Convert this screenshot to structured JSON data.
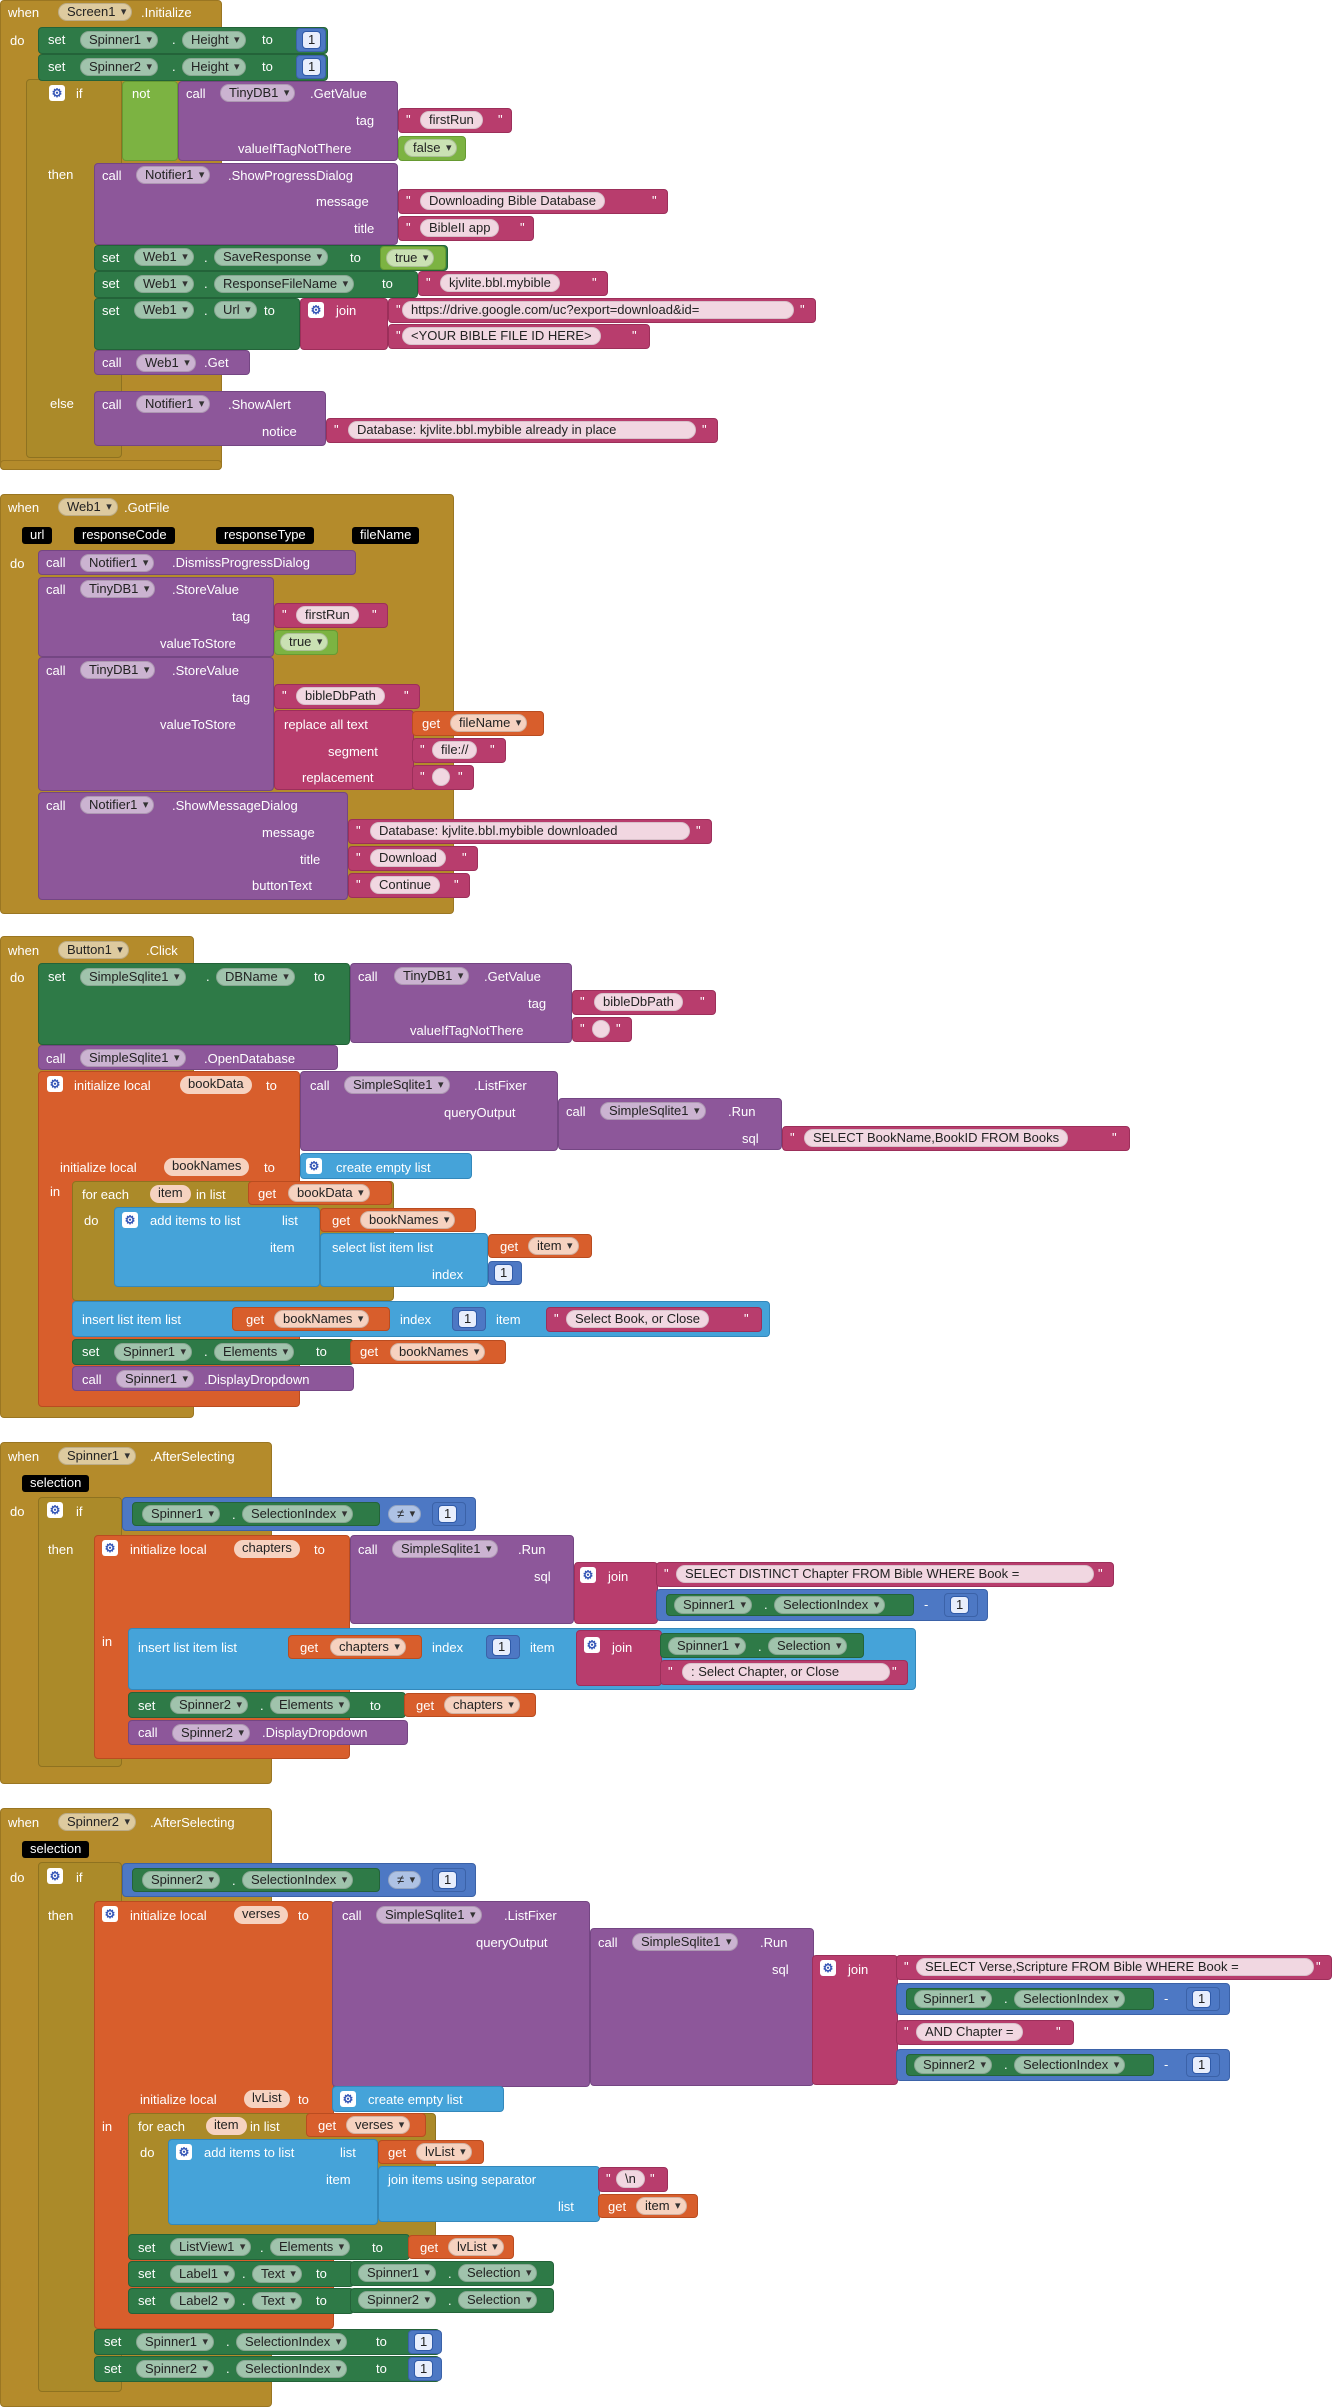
{
  "kw": {
    "when": "when",
    "do": "do",
    "set": "set",
    "to": "to",
    "call": "call",
    "if": "if",
    "then": "then",
    "else": "else",
    "not": "not",
    "join": "join",
    "get": "get",
    "in": "in",
    "dot": ".",
    "neq": "≠",
    "minus": "-",
    "q": "\""
  },
  "components": {
    "screen1": "Screen1",
    "spinner1": "Spinner1",
    "spinner2": "Spinner2",
    "tinydb1": "TinyDB1",
    "notifier1": "Notifier1",
    "web1": "Web1",
    "button1": "Button1",
    "simplesqlite1": "SimpleSqlite1",
    "listview1": "ListView1",
    "label1": "Label1",
    "label2": "Label2"
  },
  "props": {
    "height": "Height",
    "saveResponse": "SaveResponse",
    "responseFileName": "ResponseFileName",
    "url": "Url",
    "dbName": "DBName",
    "elements": "Elements",
    "selectionIndex": "SelectionIndex",
    "selection": "Selection",
    "text": "Text"
  },
  "events": {
    "initialize": ".Initialize",
    "gotFile": ".GotFile",
    "click": ".Click",
    "afterSelecting": ".AfterSelecting"
  },
  "methods": {
    "getValue": ".GetValue",
    "showProgressDialog": ".ShowProgressDialog",
    "get": ".Get",
    "showAlert": ".ShowAlert",
    "dismissProgressDialog": ".DismissProgressDialog",
    "storeValue": ".StoreValue",
    "showMessageDialog": ".ShowMessageDialog",
    "openDatabase": ".OpenDatabase",
    "listFixer": ".ListFixer",
    "run": ".Run",
    "displayDropdown": ".DisplayDropdown"
  },
  "sockets": {
    "tag": "tag",
    "valueIfTagNotThere": "valueIfTagNotThere",
    "message": "message",
    "title": "title",
    "notice": "notice",
    "valueToStore": "valueToStore",
    "segment": "segment",
    "replacement": "replacement",
    "buttonText": "buttonText",
    "queryOutput": "queryOutput",
    "sql": "sql",
    "list": "list",
    "item": "item",
    "index": "index"
  },
  "ops": {
    "replaceAllText": "replace all text",
    "initializeLocal": "initialize local",
    "createEmptyList": "create empty list",
    "forEach": "for each",
    "inList": "in list",
    "addItemsToList": "add items to list",
    "selectListItem": "select list item  list",
    "insertListItem": "insert list item  list",
    "joinItemsUsingSeparator": "join items using separator"
  },
  "bools": {
    "false": "false",
    "true": "true"
  },
  "numbers": {
    "one": "1"
  },
  "params": {
    "url": "url",
    "responseCode": "responseCode",
    "responseType": "responseType",
    "fileName": "fileName",
    "selection": "selection"
  },
  "vars": {
    "bookData": "bookData",
    "bookNames": "bookNames",
    "item": "item",
    "chapters": "chapters",
    "verses": "verses",
    "lvList": "lvList",
    "fileName": "fileName"
  },
  "strings": {
    "firstRun": "firstRun",
    "downloading": "Downloading Bible Database",
    "bibleApp": "BibleII app",
    "kjvlite": "kjvlite.bbl.mybible",
    "driveUrl": "https://drive.google.com/uc?export=download&id=",
    "fileId": "<YOUR BIBLE FILE ID HERE>",
    "alreadyInPlace": "Database: kjvlite.bbl.mybible already in place",
    "bibleDbPath": "bibleDbPath",
    "fileScheme": "file://",
    "empty": " ",
    "downloaded": "Database: kjvlite.bbl.mybible downloaded",
    "download": "Download",
    "continue": "Continue",
    "selectBooks": "SELECT BookName,BookID FROM Books",
    "selectBookOrClose": "Select Book, or Close",
    "selectChapters": "SELECT DISTINCT Chapter FROM Bible WHERE Book = ",
    "selectChapterOrClose": ": Select Chapter, or Close",
    "selectVerses": "SELECT Verse,Scripture FROM Bible WHERE Book = ",
    "andChapter": " AND Chapter = ",
    "newline": "\\n"
  }
}
